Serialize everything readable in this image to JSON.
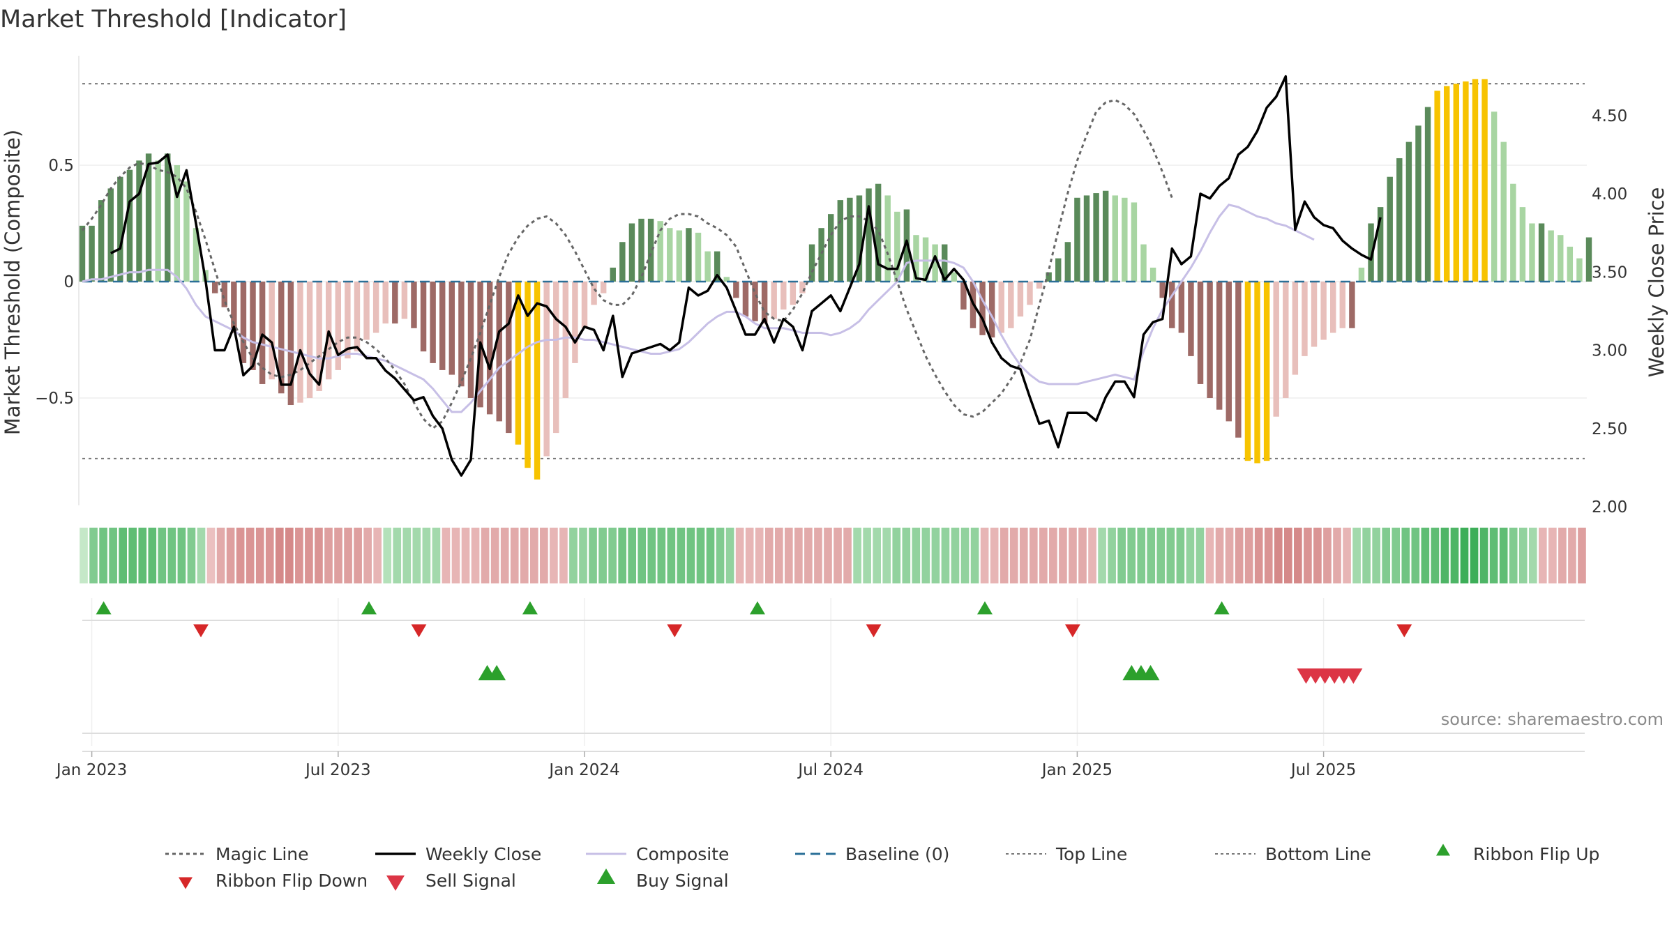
{
  "chart_data": {
    "title": "Market Threshold [Indicator]",
    "type": "bar",
    "y_left": {
      "label": "Market Threshold (Composite)",
      "ticks": [
        "0.5",
        "0",
        "−0.5"
      ],
      "tick_values": [
        0.5,
        0,
        -0.5
      ],
      "range": [
        -0.96,
        0.97
      ]
    },
    "y_right": {
      "label": "Weekly Close Price",
      "ticks": [
        "4.50",
        "4.00",
        "3.50",
        "3.00",
        "2.50",
        "2.00"
      ],
      "tick_values": [
        4.5,
        4.0,
        3.5,
        3.0,
        2.5,
        2.0
      ],
      "range": [
        2.0,
        4.8
      ]
    },
    "x_ticks": [
      "Jan 2023",
      "Jul 2023",
      "Jan 2024",
      "Jul 2024",
      "Jan 2025",
      "Jul 2025"
    ],
    "x_tick_weeks": [
      1,
      27,
      53,
      79,
      105,
      131
    ],
    "top_line": 0.85,
    "bottom_line": -0.76,
    "bars": [
      0.24,
      0.24,
      0.35,
      0.4,
      0.45,
      0.48,
      0.52,
      0.55,
      0.52,
      0.55,
      0.5,
      0.43,
      0.23,
      0.05,
      -0.05,
      -0.11,
      -0.22,
      -0.35,
      -0.38,
      -0.44,
      -0.42,
      -0.48,
      -0.53,
      -0.52,
      -0.5,
      -0.47,
      -0.42,
      -0.38,
      -0.33,
      -0.3,
      -0.25,
      -0.22,
      -0.18,
      -0.18,
      -0.16,
      -0.2,
      -0.3,
      -0.35,
      -0.38,
      -0.4,
      -0.45,
      -0.5,
      -0.54,
      -0.57,
      -0.6,
      -0.65,
      -0.7,
      -0.8,
      -0.85,
      -0.75,
      -0.65,
      -0.5,
      -0.35,
      -0.2,
      -0.1,
      -0.05,
      0.06,
      0.17,
      0.25,
      0.27,
      0.27,
      0.26,
      0.23,
      0.22,
      0.23,
      0.21,
      0.13,
      0.13,
      0.02,
      -0.07,
      -0.15,
      -0.17,
      -0.18,
      -0.16,
      -0.12,
      -0.1,
      -0.05,
      0.16,
      0.23,
      0.29,
      0.35,
      0.36,
      0.37,
      0.4,
      0.42,
      0.37,
      0.3,
      0.31,
      0.2,
      0.19,
      0.16,
      0.16,
      0.04,
      -0.12,
      -0.2,
      -0.23,
      -0.24,
      -0.22,
      -0.2,
      -0.15,
      -0.1,
      -0.03,
      0.04,
      0.1,
      0.17,
      0.36,
      0.37,
      0.38,
      0.39,
      0.37,
      0.36,
      0.34,
      0.16,
      0.06,
      -0.07,
      -0.2,
      -0.22,
      -0.32,
      -0.44,
      -0.5,
      -0.55,
      -0.6,
      -0.67,
      -0.77,
      -0.78,
      -0.77,
      -0.58,
      -0.5,
      -0.4,
      -0.32,
      -0.28,
      -0.25,
      -0.22,
      -0.2,
      -0.2,
      0.06,
      0.25,
      0.32,
      0.45,
      0.53,
      0.6,
      0.67,
      0.75,
      0.82,
      0.84,
      0.85,
      0.86,
      0.87,
      0.87,
      0.73,
      0.6,
      0.42,
      0.32,
      0.25,
      0.25,
      0.22,
      0.2,
      0.15,
      0.1,
      0.19
    ],
    "weekly_close": [
      3.62,
      3.65,
      3.95,
      4.0,
      4.19,
      4.2,
      4.25,
      3.98,
      4.15,
      3.81,
      3.45,
      3.0,
      3.0,
      3.15,
      2.84,
      2.9,
      3.1,
      3.05,
      2.78,
      2.78,
      3.0,
      2.85,
      2.78,
      3.12,
      2.97,
      3.01,
      3.02,
      2.95,
      2.95,
      2.87,
      2.82,
      2.75,
      2.68,
      2.7,
      2.58,
      2.5,
      2.3,
      2.2,
      2.3,
      3.05,
      2.88,
      3.12,
      3.17,
      3.35,
      3.22,
      3.3,
      3.28,
      3.2,
      3.15,
      3.05,
      3.15,
      3.13,
      3.0,
      3.22,
      2.83,
      2.98,
      3.0,
      3.02,
      3.04,
      3.0,
      3.05,
      3.4,
      3.35,
      3.38,
      3.48,
      3.4,
      3.25,
      3.1,
      3.1,
      3.2,
      3.05,
      3.2,
      3.15,
      3.0,
      3.25,
      3.3,
      3.35,
      3.25,
      3.4,
      3.55,
      3.92,
      3.55,
      3.52,
      3.52,
      3.7,
      3.46,
      3.45,
      3.6,
      3.45,
      3.52,
      3.45,
      3.3,
      3.2,
      3.05,
      2.95,
      2.9,
      2.88,
      2.7,
      2.53,
      2.55,
      2.38,
      2.6,
      2.6,
      2.6,
      2.55,
      2.7,
      2.8,
      2.8,
      2.7,
      3.1,
      3.18,
      3.2,
      3.65,
      3.55,
      3.6,
      4.0,
      3.97,
      4.05,
      4.1,
      4.25,
      4.3,
      4.4,
      4.55,
      4.62,
      4.75,
      3.77,
      3.95,
      3.85,
      3.8,
      3.78,
      3.7,
      3.65,
      3.61,
      3.58,
      3.85
    ],
    "weekly_close_offset": 3,
    "composite": [
      0.0,
      0.01,
      0.01,
      0.02,
      0.03,
      0.04,
      0.04,
      0.05,
      0.05,
      0.05,
      0.02,
      -0.03,
      -0.1,
      -0.15,
      -0.17,
      -0.19,
      -0.21,
      -0.24,
      -0.26,
      -0.27,
      -0.28,
      -0.29,
      -0.3,
      -0.31,
      -0.32,
      -0.33,
      -0.33,
      -0.32,
      -0.31,
      -0.31,
      -0.32,
      -0.33,
      -0.34,
      -0.36,
      -0.38,
      -0.4,
      -0.42,
      -0.46,
      -0.51,
      -0.56,
      -0.56,
      -0.52,
      -0.47,
      -0.42,
      -0.37,
      -0.34,
      -0.31,
      -0.28,
      -0.26,
      -0.25,
      -0.25,
      -0.24,
      -0.24,
      -0.25,
      -0.25,
      -0.26,
      -0.27,
      -0.28,
      -0.29,
      -0.3,
      -0.31,
      -0.31,
      -0.3,
      -0.29,
      -0.26,
      -0.22,
      -0.18,
      -0.15,
      -0.13,
      -0.13,
      -0.15,
      -0.18,
      -0.2,
      -0.2,
      -0.2,
      -0.21,
      -0.22,
      -0.22,
      -0.22,
      -0.23,
      -0.22,
      -0.2,
      -0.17,
      -0.12,
      -0.08,
      -0.04,
      0.0,
      0.08,
      0.09,
      0.09,
      0.09,
      0.09,
      0.08,
      0.06,
      0.0,
      -0.08,
      -0.15,
      -0.23,
      -0.3,
      -0.36,
      -0.4,
      -0.43,
      -0.44,
      -0.44,
      -0.44,
      -0.44,
      -0.43,
      -0.42,
      -0.41,
      -0.4,
      -0.41,
      -0.42,
      -0.3,
      -0.2,
      -0.12,
      -0.06,
      0.0,
      0.06,
      0.13,
      0.21,
      0.28,
      0.33,
      0.32,
      0.3,
      0.28,
      0.27,
      0.25,
      0.24,
      0.22,
      0.2,
      0.18
    ],
    "composite_offset": 0,
    "magic_line": [
      0.22,
      0.27,
      0.33,
      0.4,
      0.45,
      0.49,
      0.51,
      0.5,
      0.48,
      0.47,
      0.45,
      0.4,
      0.3,
      0.18,
      0.05,
      -0.08,
      -0.18,
      -0.26,
      -0.33,
      -0.37,
      -0.4,
      -0.41,
      -0.4,
      -0.38,
      -0.35,
      -0.32,
      -0.29,
      -0.26,
      -0.24,
      -0.24,
      -0.26,
      -0.29,
      -0.33,
      -0.38,
      -0.44,
      -0.52,
      -0.59,
      -0.63,
      -0.6,
      -0.52,
      -0.43,
      -0.33,
      -0.22,
      -0.1,
      0.02,
      0.12,
      0.19,
      0.24,
      0.27,
      0.28,
      0.25,
      0.2,
      0.13,
      0.05,
      -0.03,
      -0.08,
      -0.1,
      -0.1,
      -0.06,
      0.02,
      0.12,
      0.22,
      0.27,
      0.29,
      0.29,
      0.28,
      0.25,
      0.23,
      0.2,
      0.15,
      0.05,
      -0.05,
      -0.13,
      -0.16,
      -0.17,
      -0.12,
      -0.05,
      0.04,
      0.12,
      0.2,
      0.26,
      0.28,
      0.28,
      0.26,
      0.22,
      0.12,
      0.0,
      -0.12,
      -0.22,
      -0.32,
      -0.4,
      -0.47,
      -0.53,
      -0.57,
      -0.58,
      -0.56,
      -0.52,
      -0.48,
      -0.42,
      -0.35,
      -0.25,
      -0.1,
      0.05,
      0.22,
      0.38,
      0.52,
      0.63,
      0.73,
      0.77,
      0.78,
      0.76,
      0.72,
      0.65,
      0.57,
      0.47,
      0.36
    ],
    "ribbon": [
      0.1,
      0.5,
      0.6,
      0.6,
      0.7,
      0.7,
      0.7,
      0.7,
      0.6,
      0.6,
      0.6,
      0.5,
      0.3,
      -0.2,
      -0.4,
      -0.5,
      -0.6,
      -0.6,
      -0.6,
      -0.6,
      -0.7,
      -0.7,
      -0.6,
      -0.6,
      -0.6,
      -0.5,
      -0.5,
      -0.5,
      -0.5,
      -0.4,
      -0.3,
      0.2,
      0.3,
      0.3,
      0.3,
      0.3,
      0.3,
      -0.3,
      -0.3,
      -0.3,
      -0.3,
      -0.4,
      -0.4,
      -0.4,
      -0.4,
      -0.4,
      -0.4,
      -0.4,
      -0.3,
      -0.3,
      0.4,
      0.4,
      0.5,
      0.5,
      0.5,
      0.6,
      0.6,
      0.6,
      0.6,
      0.6,
      0.6,
      0.6,
      0.6,
      0.6,
      0.6,
      0.5,
      0.4,
      -0.3,
      -0.3,
      -0.3,
      -0.4,
      -0.4,
      -0.4,
      -0.4,
      -0.4,
      -0.4,
      -0.4,
      -0.4,
      -0.4,
      0.3,
      0.3,
      0.3,
      0.3,
      0.4,
      0.4,
      0.4,
      0.4,
      0.4,
      0.4,
      0.4,
      0.4,
      0.4,
      -0.3,
      -0.3,
      -0.4,
      -0.4,
      -0.4,
      -0.4,
      -0.4,
      -0.4,
      -0.4,
      -0.4,
      -0.4,
      -0.3,
      0.3,
      0.4,
      0.5,
      0.5,
      0.5,
      0.5,
      0.5,
      0.5,
      0.5,
      0.4,
      0.4,
      -0.3,
      -0.4,
      -0.4,
      -0.5,
      -0.5,
      -0.6,
      -0.6,
      -0.7,
      -0.7,
      -0.7,
      -0.6,
      -0.6,
      -0.5,
      -0.4,
      -0.3,
      0.3,
      0.4,
      0.4,
      0.5,
      0.5,
      0.6,
      0.6,
      0.7,
      0.7,
      0.8,
      0.8,
      0.9,
      0.9,
      0.8,
      0.7,
      0.7,
      0.5,
      0.4,
      0.3,
      -0.3,
      -0.3,
      -0.4,
      -0.4,
      -0.5
    ],
    "ribbon_flip_up": [
      1,
      29,
      46,
      70,
      94,
      119
    ],
    "ribbon_flip_down": [
      12,
      35,
      62,
      83,
      104,
      139
    ],
    "buy_signals": [
      42,
      43,
      110,
      111,
      112
    ],
    "sell_signals": [
      129,
      130,
      131,
      132,
      133,
      134
    ],
    "colors": {
      "bar_pos_strong": "#5a8a5a",
      "bar_pos_weak": "#a8d5a2",
      "bar_neg_strong": "#9e6a66",
      "bar_neg_weak": "#e8bfbb",
      "bar_extreme": "#f7c300",
      "weekly_close": "#000000",
      "composite": "#c7bfe6",
      "magic_line": "#666666",
      "baseline": "#2a6f97",
      "top_bottom_line": "#777777",
      "up_marker": "#2ca02c",
      "down_marker": "#d62728",
      "sell_marker": "#dc3545"
    },
    "legend": [
      "Magic Line",
      "Weekly Close",
      "Composite",
      "Baseline (0)",
      "Top Line",
      "Bottom Line",
      "Ribbon Flip Up",
      "Ribbon Flip Down",
      "Sell Signal",
      "Buy Signal"
    ],
    "legend_placement": "bottom",
    "source_note": "source: sharemaestro.com"
  }
}
